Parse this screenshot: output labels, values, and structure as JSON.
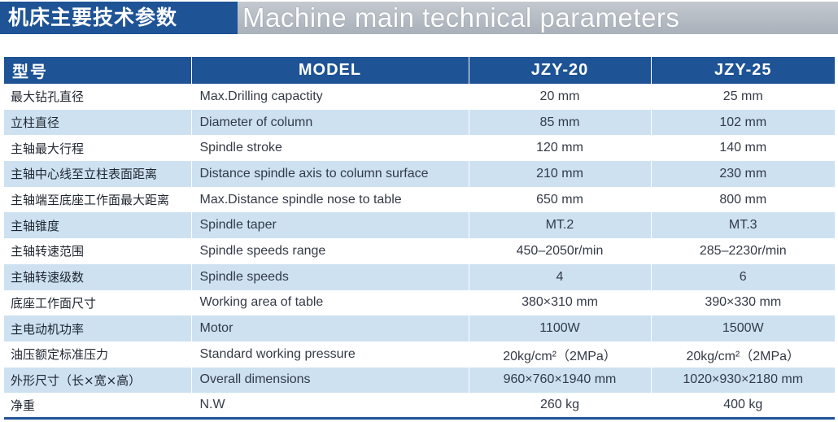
{
  "header": {
    "title_cn": "机床主要技术参数",
    "title_en": "Machine main technical parameters"
  },
  "table": {
    "columns": [
      "型号",
      "MODEL",
      "JZY-20",
      "JZY-25"
    ],
    "rows": [
      [
        "最大钻孔直径",
        "Max.Drilling capactity",
        "20 mm",
        "25 mm"
      ],
      [
        "立柱直径",
        "Diameter of column",
        "85 mm",
        "102 mm"
      ],
      [
        "主轴最大行程",
        "Spindle stroke",
        "120 mm",
        "140 mm"
      ],
      [
        "主轴中心线至立柱表面距离",
        "Distance spindle axis to column surface",
        "210 mm",
        "230 mm"
      ],
      [
        "主轴端至底座工作面最大距离",
        "Max.Distance spindle nose to table",
        "650 mm",
        "800 mm"
      ],
      [
        "主轴锥度",
        "Spindle taper",
        "MT.2",
        "MT.3"
      ],
      [
        "主轴转速范围",
        "Spindle speeds range",
        "450–2050r/min",
        "285–2230r/min"
      ],
      [
        "主轴转速级数",
        "Spindle speeds",
        "4",
        "6"
      ],
      [
        "底座工作面尺寸",
        "Working area of table",
        "380×310 mm",
        "390×330 mm"
      ],
      [
        "主电动机功率",
        "Motor",
        "1100W",
        "1500W"
      ],
      [
        "油压额定标准压力",
        "Standard working pressure",
        "20kg/cm²（2MPa）",
        "20kg/cm²（2MPa）"
      ],
      [
        "外形尺寸（长×宽×高）",
        "Overall dimensions",
        "960×760×1940 mm",
        "1020×930×2180 mm"
      ],
      [
        "净重",
        "N.W",
        "260 kg",
        "400 kg"
      ]
    ]
  }
}
